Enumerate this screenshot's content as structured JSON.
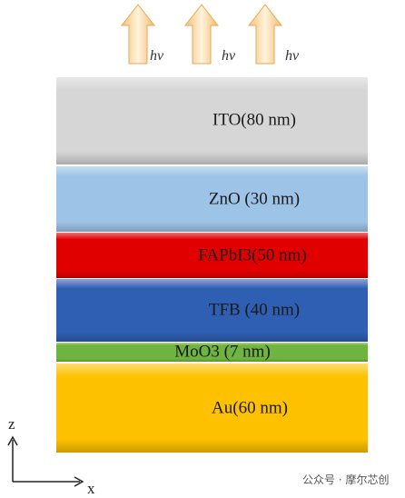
{
  "emission_labels": [
    "hν",
    "hν",
    "hν"
  ],
  "layers": [
    {
      "label": "ITO(80 nm)"
    },
    {
      "label": "ZnO (30 nm)"
    },
    {
      "label": "FAPbI3(50 nm)"
    },
    {
      "label": "TFB (40 nm)"
    },
    {
      "label": "MoO3 (7 nm)"
    },
    {
      "label": "Au(60 nm)"
    }
  ],
  "axes": {
    "z": "z",
    "x": "x"
  },
  "watermark": "公众号 · 摩尔芯创"
}
